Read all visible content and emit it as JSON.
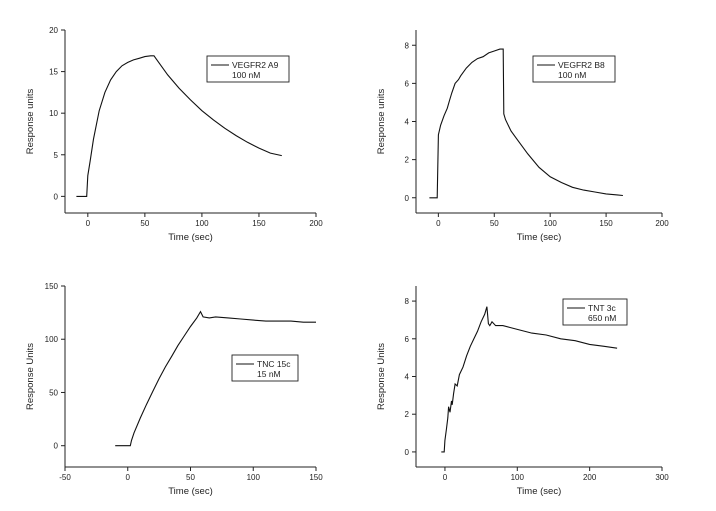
{
  "chart_data": [
    {
      "type": "line",
      "xlabel": "Time (sec)",
      "ylabel": "Response units",
      "xlim": [
        -20,
        200
      ],
      "ylim": [
        -2,
        20
      ],
      "xticks": [
        "0",
        "50",
        "100",
        "150",
        "200"
      ],
      "yticks": [
        "0",
        "5",
        "10",
        "15",
        "20"
      ],
      "legend": {
        "name": "VEGFR2 A9",
        "note": "100 nM",
        "placement": "top-right"
      },
      "series": [
        {
          "name": "VEGFR2 A9",
          "x": [
            -10,
            -1,
            0,
            2,
            5,
            10,
            15,
            20,
            25,
            30,
            35,
            40,
            45,
            50,
            55,
            58,
            60,
            70,
            80,
            90,
            100,
            110,
            120,
            130,
            140,
            150,
            160,
            170
          ],
          "y": [
            0,
            0,
            2.5,
            4.2,
            6.9,
            10.3,
            12.5,
            14.0,
            15.0,
            15.7,
            16.1,
            16.4,
            16.6,
            16.8,
            16.9,
            16.9,
            16.5,
            14.6,
            13.0,
            11.6,
            10.3,
            9.2,
            8.2,
            7.3,
            6.5,
            5.8,
            5.2,
            4.9
          ]
        }
      ]
    },
    {
      "type": "line",
      "xlabel": "Time (sec)",
      "ylabel": "Response units",
      "xlim": [
        -20,
        200
      ],
      "ylim": [
        -0.8,
        8.8
      ],
      "xticks": [
        "0",
        "50",
        "100",
        "150",
        "200"
      ],
      "yticks": [
        "0",
        "2",
        "4",
        "6",
        "8"
      ],
      "legend": {
        "name": "VEGFR2 B8",
        "note": "100 nM",
        "placement": "top-right"
      },
      "series": [
        {
          "name": "VEGFR2 B8",
          "x": [
            -8,
            -1,
            0,
            2,
            5,
            8,
            10,
            12,
            15,
            18,
            20,
            25,
            30,
            35,
            40,
            45,
            50,
            55,
            58,
            58.5,
            60,
            65,
            70,
            80,
            90,
            100,
            110,
            120,
            130,
            140,
            150,
            160,
            165
          ],
          "y": [
            0,
            0,
            3.3,
            3.8,
            4.3,
            4.7,
            5.1,
            5.5,
            6.0,
            6.2,
            6.4,
            6.8,
            7.1,
            7.3,
            7.4,
            7.6,
            7.7,
            7.8,
            7.8,
            4.4,
            4.1,
            3.5,
            3.1,
            2.3,
            1.6,
            1.1,
            0.8,
            0.55,
            0.4,
            0.3,
            0.2,
            0.15,
            0.12
          ]
        }
      ]
    },
    {
      "type": "line",
      "xlabel": "Time (sec)",
      "ylabel": "Response Units",
      "xlim": [
        -50,
        150
      ],
      "ylim": [
        -20,
        150
      ],
      "xticks": [
        "-50",
        "0",
        "50",
        "100",
        "150"
      ],
      "yticks": [
        "0",
        "50",
        "100",
        "150"
      ],
      "legend": {
        "name": "TNC 15c",
        "note": "15 nM",
        "placement": "center-right"
      },
      "series": [
        {
          "name": "TNC 15c",
          "x": [
            -10,
            0,
            2,
            3,
            5,
            10,
            15,
            20,
            25,
            30,
            35,
            40,
            45,
            50,
            55,
            58,
            60,
            65,
            70,
            80,
            90,
            100,
            110,
            120,
            130,
            140,
            150
          ],
          "y": [
            0,
            0,
            0,
            5,
            12,
            26,
            39,
            51,
            63,
            74,
            84,
            94,
            103,
            112,
            120,
            126,
            121,
            120,
            121,
            120,
            119,
            118,
            117,
            117,
            117,
            116,
            116
          ]
        }
      ]
    },
    {
      "type": "line",
      "xlabel": "Time (sec)",
      "ylabel": "Response Units",
      "xlim": [
        -40,
        300
      ],
      "ylim": [
        -0.8,
        8.8
      ],
      "xticks": [
        "0",
        "100",
        "200",
        "300"
      ],
      "yticks": [
        "0",
        "2",
        "4",
        "6",
        "8"
      ],
      "legend": {
        "name": "TNT 3c",
        "note": "650 nM",
        "placement": "top-right"
      },
      "series": [
        {
          "name": "TNT 3c",
          "x": [
            -5,
            -1,
            0,
            2,
            4,
            5,
            7,
            9,
            10,
            12,
            14,
            17,
            20,
            25,
            30,
            35,
            40,
            45,
            50,
            55,
            58,
            60,
            62,
            65,
            70,
            80,
            90,
            100,
            120,
            140,
            160,
            180,
            200,
            220,
            238
          ],
          "y": [
            0,
            0,
            0.6,
            1.2,
            1.8,
            2.4,
            2.1,
            2.7,
            2.5,
            3.1,
            3.6,
            3.5,
            4.1,
            4.5,
            5.1,
            5.6,
            6.0,
            6.4,
            6.9,
            7.3,
            7.7,
            6.8,
            6.7,
            6.9,
            6.7,
            6.7,
            6.6,
            6.5,
            6.3,
            6.2,
            6.0,
            5.9,
            5.7,
            5.6,
            5.5
          ]
        }
      ]
    }
  ]
}
